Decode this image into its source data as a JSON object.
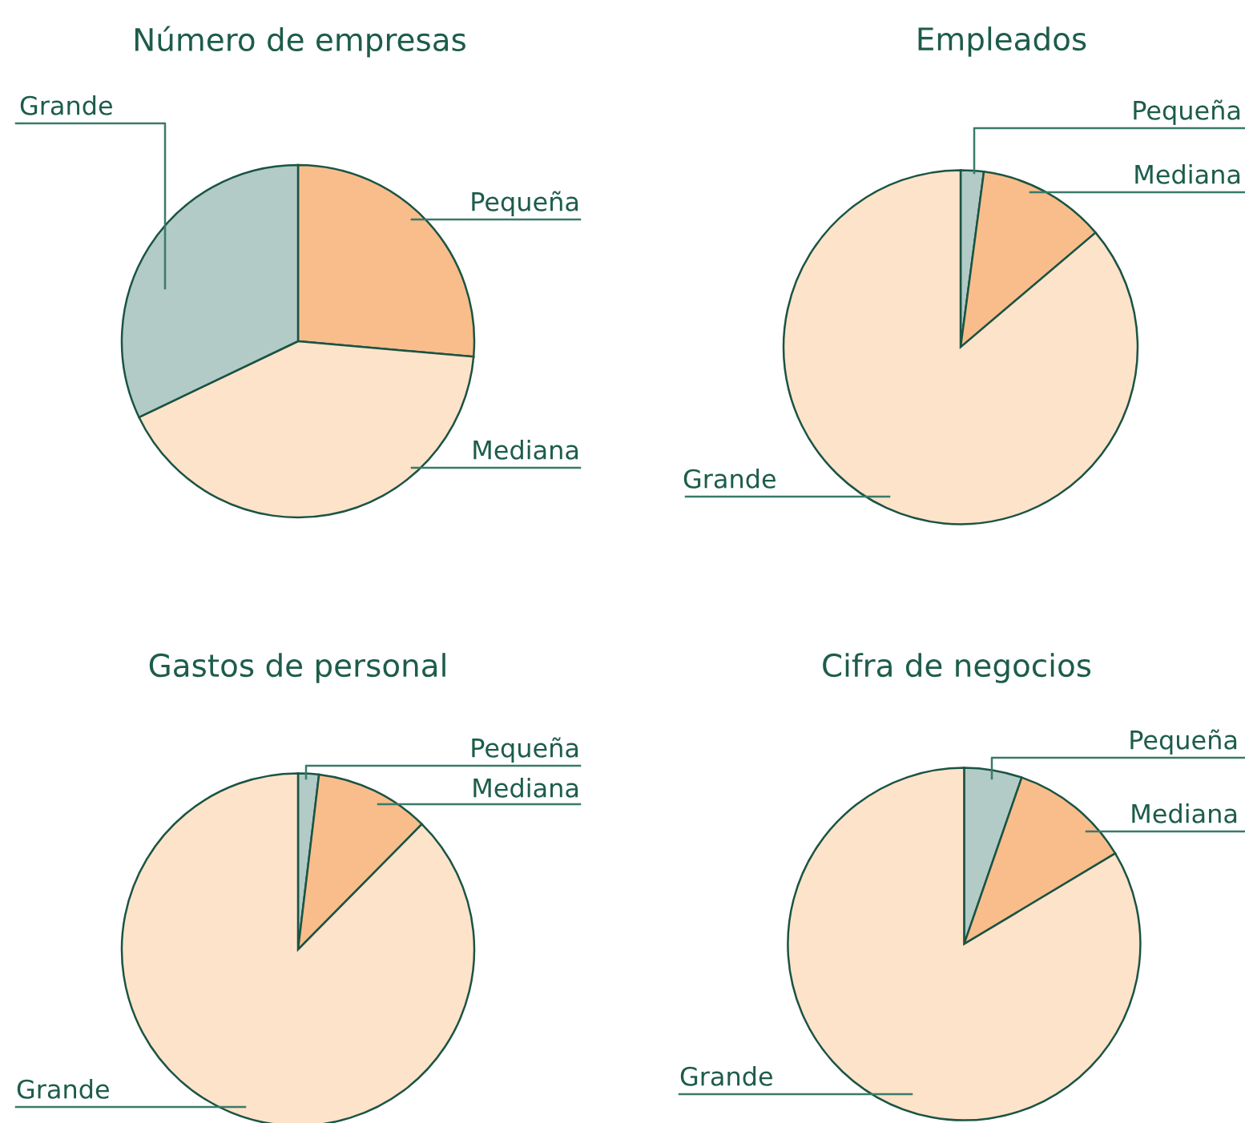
{
  "chart_data": [
    {
      "type": "pie",
      "title": "Número de empresas",
      "categories": [
        "Pequeña",
        "Mediana",
        "Grande"
      ],
      "values": [
        26.4,
        41.5,
        32.1
      ],
      "colors": [
        "#f8bd8b",
        "#fde3c9",
        "#b2cbc6"
      ]
    },
    {
      "type": "pie",
      "title": "Empleados",
      "categories": [
        "Pequeña",
        "Mediana",
        "Grande"
      ],
      "values": [
        2.1,
        11.7,
        86.2
      ],
      "colors": [
        "#b2cbc6",
        "#f8bd8b",
        "#fde3c9"
      ]
    },
    {
      "type": "pie",
      "title": "Gastos de personal",
      "categories": [
        "Pequeña",
        "Mediana",
        "Grande"
      ],
      "values": [
        1.9,
        10.5,
        87.6
      ],
      "colors": [
        "#b2cbc6",
        "#f8bd8b",
        "#fde3c9"
      ]
    },
    {
      "type": "pie",
      "title": "Cifra de negocios",
      "categories": [
        "Pequeña",
        "Mediana",
        "Grande"
      ],
      "values": [
        5.3,
        11.1,
        83.6
      ],
      "colors": [
        "#b2cbc6",
        "#f8bd8b",
        "#fde3c9"
      ]
    }
  ]
}
